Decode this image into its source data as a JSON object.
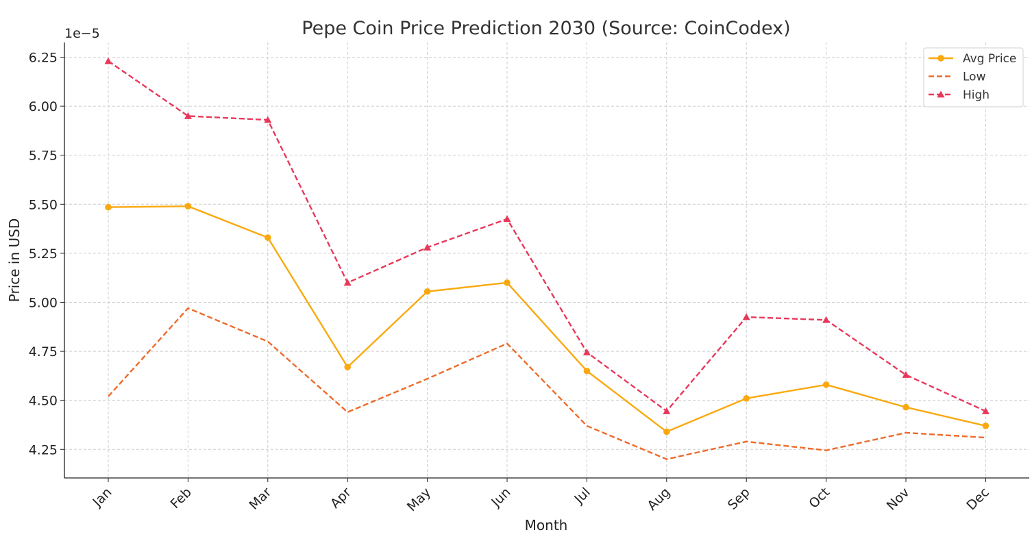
{
  "chart_data": {
    "type": "line",
    "title": "Pepe Coin Price Prediction 2030 (Source: CoinCodex)",
    "xlabel": "Month",
    "ylabel": "Price in USD",
    "y_offset_label": "1e−5",
    "categories": [
      "Jan",
      "Feb",
      "Mar",
      "Apr",
      "May",
      "Jun",
      "Jul",
      "Aug",
      "Sep",
      "Oct",
      "Nov",
      "Dec"
    ],
    "ylim": [
      4.1,
      6.33
    ],
    "yticks": [
      4.25,
      4.5,
      4.75,
      5.0,
      5.25,
      5.5,
      5.75,
      6.0,
      6.25
    ],
    "ytick_labels": [
      "4.25",
      "4.50",
      "4.75",
      "5.00",
      "5.25",
      "5.50",
      "5.75",
      "6.00",
      "6.25"
    ],
    "grid": true,
    "legend_position": "top-right",
    "series": [
      {
        "name": "Avg Price",
        "color": "#F9A90F",
        "style": "solid",
        "marker": "circle",
        "values": [
          5.485,
          5.49,
          5.33,
          4.67,
          5.055,
          5.1,
          4.65,
          4.34,
          4.51,
          4.58,
          4.465,
          4.37
        ]
      },
      {
        "name": "Low",
        "color": "#EE6B2A",
        "style": "dashed",
        "marker": "none",
        "values": [
          4.52,
          4.97,
          4.8,
          4.44,
          4.61,
          4.79,
          4.37,
          4.2,
          4.29,
          4.245,
          4.335,
          4.31
        ]
      },
      {
        "name": "High",
        "color": "#E8385A",
        "style": "dashed",
        "marker": "triangle",
        "values": [
          6.23,
          5.95,
          5.93,
          5.1,
          5.28,
          5.425,
          4.745,
          4.445,
          4.925,
          4.91,
          4.63,
          4.445
        ]
      }
    ]
  }
}
